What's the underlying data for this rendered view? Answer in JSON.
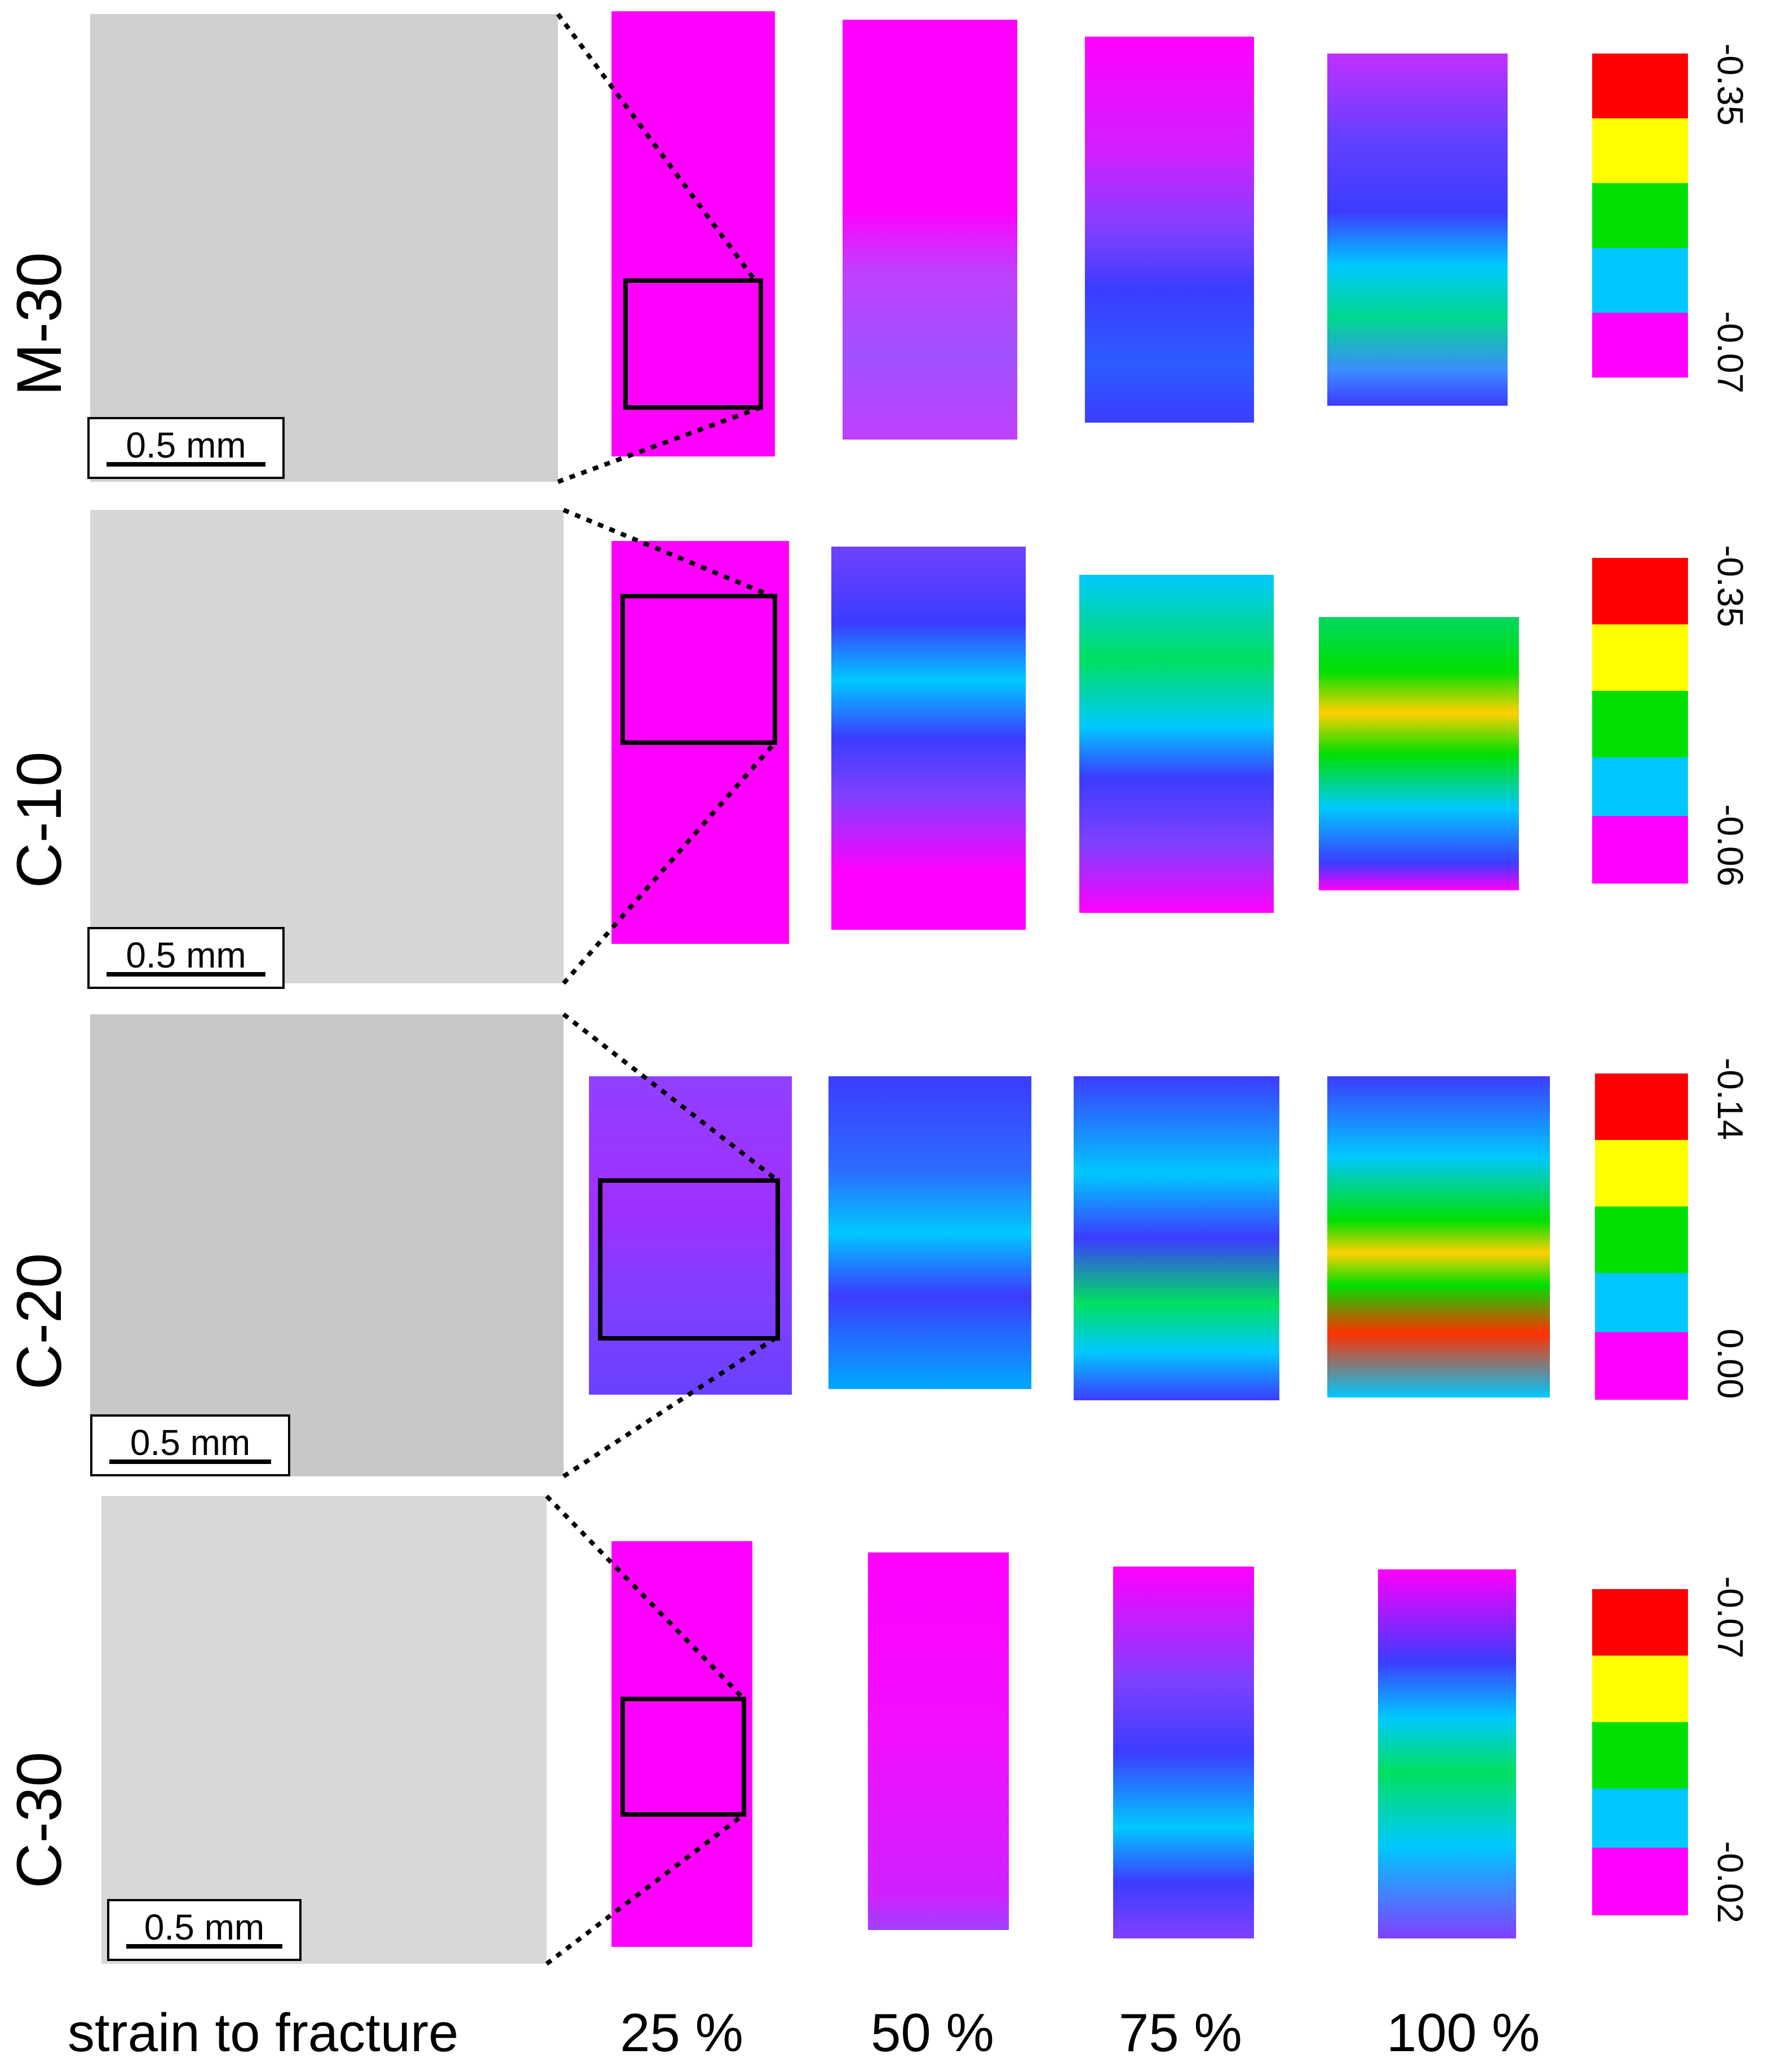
{
  "rows": [
    {
      "label": "M-30",
      "scale": "0.5 mm",
      "cbar_top": "-0.35",
      "cbar_bottom": "-0.07"
    },
    {
      "label": "C-10",
      "scale": "0.5 mm",
      "cbar_top": "-0.35",
      "cbar_bottom": "-0.06"
    },
    {
      "label": "C-20",
      "scale": "0.5 mm",
      "cbar_top": "-0.14",
      "cbar_bottom": "0.00"
    },
    {
      "label": "C-30",
      "scale": "0.5 mm",
      "cbar_top": "-0.07",
      "cbar_bottom": "-0.02"
    }
  ],
  "bottom": {
    "strain_label": "strain to fracture",
    "p25": "25 %",
    "p50": "50 %",
    "p75": "75 %",
    "p100": "100 %"
  },
  "colors": {
    "magenta": "#ff00ff",
    "blue": "#3c3cff",
    "cyan": "#00c8ff",
    "green": "#00e000",
    "yellow": "#ffff00",
    "red": "#ff0000"
  }
}
